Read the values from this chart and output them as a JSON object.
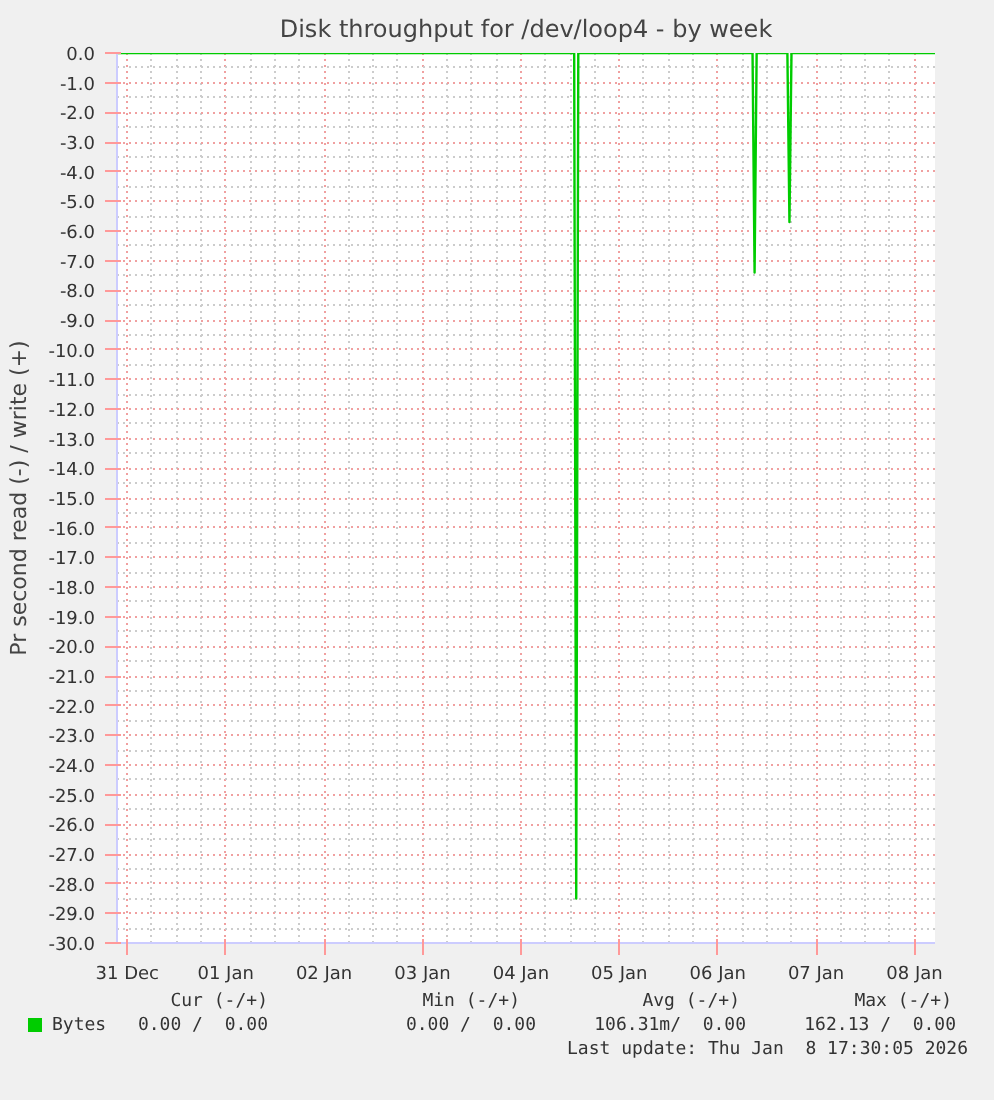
{
  "chart_data": {
    "type": "line",
    "title": "Disk throughput for /dev/loop4 - by week",
    "ylabel": "Pr second read (-) / write (+)",
    "x": [
      "2025-12-30T21:30",
      "2026-01-04T13:00",
      "2026-01-04T13:30",
      "2026-01-04T14:00",
      "2026-01-06T08:30",
      "2026-01-06T09:00",
      "2026-01-06T09:30",
      "2026-01-06T17:00",
      "2026-01-06T17:30",
      "2026-01-06T18:00",
      "2026-01-08T05:00"
    ],
    "series": [
      {
        "name": "Bytes",
        "color": "#00cc00",
        "values": [
          0,
          0,
          -28.5,
          0,
          0,
          -7.4,
          0,
          0,
          -5.7,
          0,
          0
        ]
      }
    ],
    "xlim": [
      "2025-12-30T21:30",
      "2026-01-08T05:00"
    ],
    "xticks": [
      {
        "value": "2025-12-31",
        "label": "31 Dec"
      },
      {
        "value": "2026-01-01",
        "label": "01 Jan"
      },
      {
        "value": "2026-01-02",
        "label": "02 Jan"
      },
      {
        "value": "2026-01-03",
        "label": "03 Jan"
      },
      {
        "value": "2026-01-04",
        "label": "04 Jan"
      },
      {
        "value": "2026-01-05",
        "label": "05 Jan"
      },
      {
        "value": "2026-01-06",
        "label": "06 Jan"
      },
      {
        "value": "2026-01-07",
        "label": "07 Jan"
      },
      {
        "value": "2026-01-08",
        "label": "08 Jan"
      }
    ],
    "ylim": [
      -30,
      0
    ],
    "yticks": [
      {
        "value": 0,
        "label": "0.0"
      },
      {
        "value": -1,
        "label": "-1.0"
      },
      {
        "value": -2,
        "label": "-2.0"
      },
      {
        "value": -3,
        "label": "-3.0"
      },
      {
        "value": -4,
        "label": "-4.0"
      },
      {
        "value": -5,
        "label": "-5.0"
      },
      {
        "value": -6,
        "label": "-6.0"
      },
      {
        "value": -7,
        "label": "-7.0"
      },
      {
        "value": -8,
        "label": "-8.0"
      },
      {
        "value": -9,
        "label": "-9.0"
      },
      {
        "value": -10,
        "label": "-10.0"
      },
      {
        "value": -11,
        "label": "-11.0"
      },
      {
        "value": -12,
        "label": "-12.0"
      },
      {
        "value": -13,
        "label": "-13.0"
      },
      {
        "value": -14,
        "label": "-14.0"
      },
      {
        "value": -15,
        "label": "-15.0"
      },
      {
        "value": -16,
        "label": "-16.0"
      },
      {
        "value": -17,
        "label": "-17.0"
      },
      {
        "value": -18,
        "label": "-18.0"
      },
      {
        "value": -19,
        "label": "-19.0"
      },
      {
        "value": -20,
        "label": "-20.0"
      },
      {
        "value": -21,
        "label": "-21.0"
      },
      {
        "value": -22,
        "label": "-22.0"
      },
      {
        "value": -23,
        "label": "-23.0"
      },
      {
        "value": -24,
        "label": "-24.0"
      },
      {
        "value": -25,
        "label": "-25.0"
      },
      {
        "value": -26,
        "label": "-26.0"
      },
      {
        "value": -27,
        "label": "-27.0"
      },
      {
        "value": -28,
        "label": "-28.0"
      },
      {
        "value": -29,
        "label": "-29.0"
      },
      {
        "value": -30,
        "label": "-30.0"
      }
    ],
    "grid": true,
    "legend": "bottom",
    "annotations": [
      "Cur (-/+)",
      "Min (-/+)",
      "Avg (-/+)",
      "Max (-/+)",
      "0.00 /  0.00",
      "0.00 /  0.00",
      "106.31m/  0.00",
      "162.13 /  0.00",
      "Last update: Thu Jan  8 17:30:05 2026"
    ]
  }
}
